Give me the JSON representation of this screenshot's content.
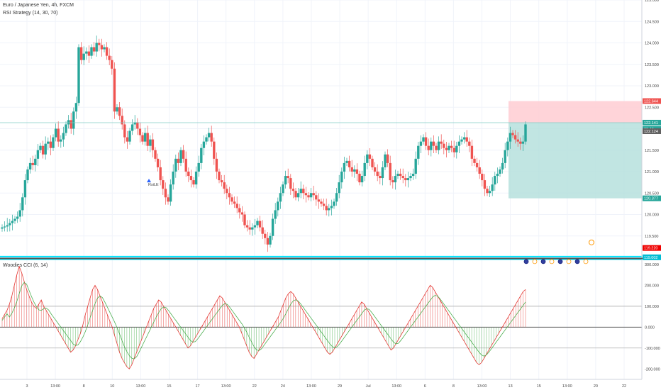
{
  "legend": {
    "symbol": "Euro / Japanese Yen, 4h, FXCM",
    "indicator": "RSI Strategy (14, 30, 70)",
    "lower": "Woodies CCI (6, 14)"
  },
  "colors": {
    "up": "#26a69a",
    "down": "#ef5350",
    "cyan": "#00e5ff",
    "target_zone": "#b2dfdb",
    "stop_zone": "#ffcdd2",
    "cci_green": "#4caf50",
    "cci_red": "#e53935"
  },
  "chart_data": [
    {
      "type": "candlestick",
      "ylim": [
        119.0,
        125.0
      ],
      "yticks": [
        "125.000",
        "124.500",
        "124.000",
        "123.500",
        "123.000",
        "122.500",
        "122.000",
        "121.500",
        "121.000",
        "120.500",
        "120.000",
        "119.500",
        "119.000"
      ],
      "xticks": [
        "3",
        "13:00",
        "8",
        "10",
        "13:00",
        "15",
        "17",
        "13:00",
        "22",
        "24",
        "13:00",
        "29",
        "Jul",
        "13:00",
        "6",
        "8",
        "13:00",
        "13",
        "15",
        "13:00",
        "20",
        "22"
      ],
      "close": [
        119.7,
        119.72,
        119.75,
        119.8,
        119.85,
        119.9,
        119.95,
        120.1,
        120.4,
        120.8,
        121.05,
        121.2,
        121.15,
        121.3,
        121.5,
        121.6,
        121.4,
        121.65,
        121.7,
        121.55,
        121.8,
        122.0,
        121.7,
        121.75,
        121.9,
        122.1,
        122.2,
        122.0,
        122.4,
        122.6,
        123.9,
        123.6,
        123.75,
        123.8,
        123.7,
        123.9,
        123.8,
        124.0,
        123.95,
        123.85,
        123.9,
        123.7,
        123.6,
        123.4,
        122.4,
        122.5,
        122.3,
        122.1,
        121.8,
        121.7,
        121.95,
        122.1,
        122.15,
        122.0,
        121.85,
        121.7,
        121.9,
        121.6,
        121.75,
        121.5,
        121.3,
        121.1,
        120.8,
        120.6,
        120.4,
        120.3,
        120.7,
        121.0,
        121.3,
        121.2,
        121.5,
        121.3,
        121.0,
        120.9,
        120.8,
        120.7,
        121.0,
        121.2,
        121.55,
        121.7,
        121.8,
        121.9,
        121.7,
        121.3,
        121.0,
        120.8,
        120.75,
        120.6,
        120.5,
        120.4,
        120.3,
        120.25,
        120.15,
        120.05,
        120.0,
        119.75,
        119.7,
        119.65,
        119.7,
        119.75,
        119.85,
        119.7,
        119.55,
        119.45,
        119.3,
        119.5,
        119.9,
        120.1,
        120.3,
        120.5,
        120.7,
        120.9,
        120.85,
        120.6,
        120.55,
        120.4,
        120.5,
        120.6,
        120.5,
        120.45,
        120.4,
        120.5,
        120.45,
        120.35,
        120.3,
        120.25,
        120.2,
        120.1,
        120.15,
        120.2,
        120.3,
        120.5,
        120.75,
        121.0,
        121.2,
        121.25,
        121.1,
        121.0,
        121.05,
        120.95,
        120.75,
        120.9,
        121.2,
        121.4,
        121.3,
        121.1,
        121.0,
        120.9,
        120.85,
        121.1,
        121.4,
        121.2,
        120.8,
        120.75,
        120.9,
        120.95,
        120.9,
        120.85,
        120.8,
        120.85,
        120.9,
        120.95,
        121.3,
        121.6,
        121.7,
        121.8,
        121.6,
        121.5,
        121.7,
        121.6,
        121.5,
        121.7,
        121.65,
        121.55,
        121.5,
        121.6,
        121.55,
        121.45,
        121.6,
        121.7,
        121.75,
        121.8,
        121.7,
        121.6,
        121.3,
        121.2,
        121.1,
        120.95,
        120.8,
        120.6,
        120.5,
        120.55,
        120.7,
        120.9,
        120.95,
        121.05,
        121.2,
        121.5,
        121.7,
        121.9,
        121.85,
        121.75,
        121.7,
        121.65,
        121.7,
        122.1
      ]
    },
    {
      "type": "bar+line",
      "ylim": [
        -250,
        320
      ],
      "yticks": [
        "300.000",
        "200.000",
        "100.000",
        "0.000",
        "-100.000",
        "-200.000"
      ],
      "levels": [
        100,
        0,
        -100
      ],
      "cci": [
        40,
        60,
        80,
        110,
        150,
        200,
        250,
        290,
        260,
        220,
        180,
        150,
        120,
        100,
        90,
        110,
        130,
        100,
        80,
        60,
        40,
        20,
        0,
        -20,
        -40,
        -60,
        -80,
        -100,
        -120,
        -110,
        -90,
        -60,
        -30,
        10,
        60,
        100,
        140,
        180,
        200,
        180,
        150,
        120,
        90,
        60,
        30,
        0,
        -40,
        -80,
        -120,
        -150,
        -170,
        -190,
        -200,
        -180,
        -150,
        -120,
        -90,
        -60,
        -30,
        0,
        30,
        60,
        90,
        110,
        130,
        120,
        100,
        80,
        60,
        40,
        20,
        0,
        -20,
        -40,
        -60,
        -80,
        -100,
        -90,
        -70,
        -50,
        -30,
        -10,
        10,
        30,
        50,
        70,
        90,
        110,
        130,
        150,
        140,
        120,
        100,
        80,
        60,
        40,
        20,
        0,
        -30,
        -60,
        -90,
        -120,
        -140,
        -150,
        -130,
        -110,
        -90,
        -70,
        -50,
        -30,
        -10,
        10,
        30,
        50,
        80,
        110,
        140,
        160,
        170,
        160,
        140,
        120,
        100,
        80,
        60,
        40,
        20,
        0,
        -20,
        -40,
        -60,
        -80,
        -100,
        -120,
        -130,
        -120,
        -100,
        -80,
        -60,
        -40,
        -20,
        0,
        20,
        40,
        60,
        80,
        100,
        120,
        110,
        90,
        70,
        50,
        30,
        10,
        -10,
        -30,
        -50,
        -70,
        -90,
        -110,
        -100,
        -80,
        -60,
        -40,
        -20,
        0,
        20,
        40,
        60,
        80,
        100,
        120,
        140,
        160,
        180,
        200,
        190,
        170,
        150,
        130,
        110,
        90,
        70,
        50,
        30,
        10,
        -10,
        -30,
        -50,
        -70,
        -90,
        -110,
        -130,
        -150,
        -170,
        -180,
        -170,
        -150,
        -130,
        -110,
        -90,
        -70,
        -50,
        -30,
        -10,
        10,
        30,
        50,
        70,
        90,
        110,
        130,
        150,
        170,
        180
      ]
    }
  ],
  "position": {
    "stop_label": "122.644",
    "entry_label": "122.141",
    "countdown_label": "30:49",
    "last_label": "122.124",
    "target_label": "120.377",
    "red_level_label": "119.220",
    "cyan_level_label": "119.002"
  },
  "annotations": {
    "signal_text": "RsiLE"
  }
}
